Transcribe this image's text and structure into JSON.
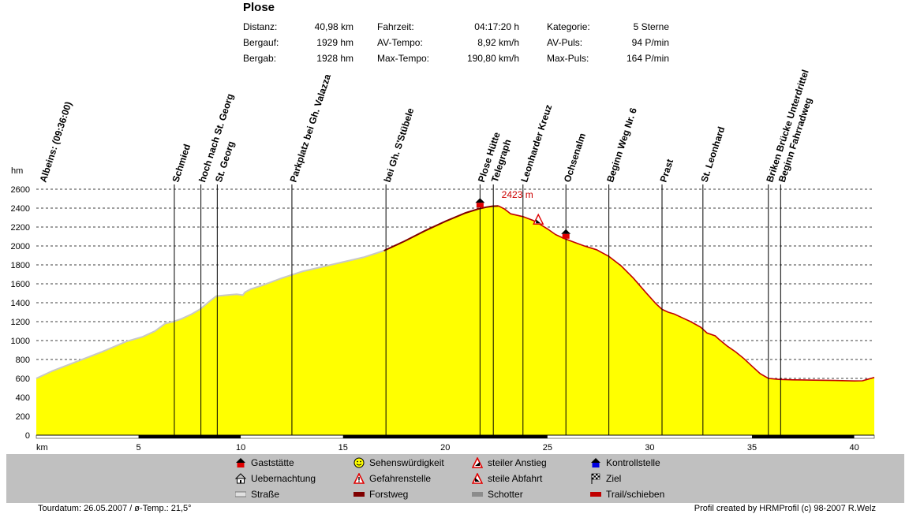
{
  "title": "Plose",
  "stats": [
    {
      "label": "Distanz:",
      "value": "40,98 km"
    },
    {
      "label": "Bergauf:",
      "value": "1929 hm"
    },
    {
      "label": "Bergab:",
      "value": "1928 hm"
    },
    {
      "label": "Fahrzeit:",
      "value": "04:17:20 h"
    },
    {
      "label": "AV-Tempo:",
      "value": "8,92 km/h"
    },
    {
      "label": "Max-Tempo:",
      "value": "190,80 km/h"
    },
    {
      "label": "Kategorie:",
      "value": "5 Sterne"
    },
    {
      "label": "AV-Puls:",
      "value": "94 P/min"
    },
    {
      "label": "Max-Puls:",
      "value": "164 P/min"
    }
  ],
  "chart_data": {
    "type": "area",
    "xlabel": "km",
    "ylabel": "hm",
    "xlim": [
      0,
      40.98
    ],
    "ylim": [
      0,
      2600
    ],
    "x_ticks": [
      5,
      10,
      15,
      20,
      25,
      30,
      35,
      40
    ],
    "y_ticks": [
      0,
      200,
      400,
      600,
      800,
      1000,
      1200,
      1400,
      1600,
      1800,
      2000,
      2200,
      2400,
      2600
    ],
    "grid": true,
    "fill_color": "#ffff00",
    "max_label": "2423 m",
    "max_point": {
      "x": 22.6,
      "y": 2423
    },
    "profile": {
      "x": [
        0,
        0.8,
        2.0,
        3.2,
        4.4,
        5.2,
        5.8,
        6.3,
        6.7,
        7.1,
        7.6,
        8.0,
        8.5,
        8.8,
        9.3,
        9.8,
        10.1,
        10.2,
        10.5,
        11.0,
        12.0,
        13.0,
        14.0,
        15.0,
        16.0,
        17.0,
        18.0,
        19.0,
        20.0,
        21.0,
        21.6,
        22.0,
        22.3,
        22.6,
        22.9,
        23.2,
        23.8,
        24.3,
        24.7,
        25.0,
        25.4,
        25.8,
        26.3,
        26.8,
        27.4,
        28.0,
        28.6,
        29.2,
        29.8,
        30.3,
        30.6,
        30.9,
        31.2,
        31.6,
        32.0,
        32.5,
        32.8,
        33.2,
        33.4,
        33.8,
        34.2,
        34.6,
        35.0,
        35.4,
        35.8,
        36.3,
        37.0,
        38.0,
        39.0,
        40.0,
        40.4,
        40.98
      ],
      "y": [
        600,
        680,
        780,
        880,
        990,
        1040,
        1100,
        1180,
        1200,
        1230,
        1280,
        1330,
        1420,
        1470,
        1480,
        1490,
        1480,
        1510,
        1545,
        1580,
        1660,
        1730,
        1780,
        1830,
        1880,
        1950,
        2050,
        2160,
        2260,
        2350,
        2390,
        2410,
        2420,
        2423,
        2390,
        2340,
        2310,
        2270,
        2220,
        2180,
        2120,
        2080,
        2040,
        2000,
        1960,
        1890,
        1790,
        1660,
        1510,
        1390,
        1330,
        1300,
        1280,
        1240,
        1200,
        1140,
        1080,
        1050,
        1010,
        940,
        880,
        810,
        730,
        650,
        600,
        590,
        585,
        582,
        578,
        573,
        575,
        610
      ]
    },
    "surface_segments": [
      {
        "from": 0,
        "to": 5.0,
        "type": "Straße"
      },
      {
        "from": 5.0,
        "to": 10.0,
        "type": "Forstweg"
      },
      {
        "from": 10.0,
        "to": 15.0,
        "type": "Straße"
      },
      {
        "from": 15.0,
        "to": 25.0,
        "type": "Forstweg"
      },
      {
        "from": 25.0,
        "to": 35.0,
        "type": "Straße"
      },
      {
        "from": 35.0,
        "to": 40.0,
        "type": "Forstweg"
      },
      {
        "from": 40.0,
        "to": 40.98,
        "type": "Straße"
      }
    ],
    "waypoints": [
      {
        "x": 0.0,
        "label": "Albeins: (09:36:00)",
        "line": false
      },
      {
        "x": 6.75,
        "label": "Schmied",
        "line": true
      },
      {
        "x": 8.05,
        "label": "hoch nach St. Georg",
        "line": true
      },
      {
        "x": 8.85,
        "label": "St. Georg",
        "line": true
      },
      {
        "x": 12.5,
        "label": "Parkplatz bei Gh. Valazza",
        "line": true
      },
      {
        "x": 17.1,
        "label": "bei Gh. S'Stübele",
        "line": true
      },
      {
        "x": 21.7,
        "label": "Plose Hütte",
        "line": true
      },
      {
        "x": 22.35,
        "label": "Telegraph",
        "line": true
      },
      {
        "x": 23.8,
        "label": "Leonharder Kreuz",
        "line": true
      },
      {
        "x": 25.9,
        "label": "Ochsenalm",
        "line": true
      },
      {
        "x": 28.0,
        "label": "Beginn Weg Nr. 6",
        "line": true
      },
      {
        "x": 30.6,
        "label": "Prast",
        "line": true
      },
      {
        "x": 32.6,
        "label": "St. Leonhard",
        "line": true
      },
      {
        "x": 35.8,
        "label": "Briken Brücke Unterdrittel",
        "line": true
      },
      {
        "x": 36.4,
        "label": "Beginn Fahrradweg",
        "line": true
      }
    ],
    "markers": [
      {
        "x": 21.7,
        "y": 2390,
        "type": "Gaststätte"
      },
      {
        "x": 24.55,
        "y": 2215,
        "type": "steile Abfahrt"
      },
      {
        "x": 25.9,
        "y": 2060,
        "type": "Kontrollstelle"
      }
    ]
  },
  "legend": [
    {
      "label": "Gaststätte",
      "icon": "house-red-icon"
    },
    {
      "label": "Uebernachtung",
      "icon": "lodge-icon"
    },
    {
      "label": "Straße",
      "icon": "road-swatch-icon"
    },
    {
      "label": "Sehenswürdigkeit",
      "icon": "smiley-icon"
    },
    {
      "label": "Gefahrenstelle",
      "icon": "warning-icon"
    },
    {
      "label": "Forstweg",
      "icon": "forest-road-swatch-icon"
    },
    {
      "label": "steiler Anstieg",
      "icon": "steep-climb-icon"
    },
    {
      "label": "steile Abfahrt",
      "icon": "steep-descent-icon"
    },
    {
      "label": "Schotter",
      "icon": "gravel-swatch-icon"
    },
    {
      "label": "Kontrollstelle",
      "icon": "checkpoint-icon"
    },
    {
      "label": "Ziel",
      "icon": "finish-flag-icon"
    },
    {
      "label": "Trail/schieben",
      "icon": "trail-swatch-icon"
    }
  ],
  "colors": {
    "straße": "#c8c8c8",
    "forstweg": "#800000",
    "schotter": "#8c8c8c",
    "trail": "#c00000",
    "profile_line": "#c00000",
    "max_label": "#cc0000"
  },
  "footer": {
    "left": "Tourdatum: 26.05.2007  /  ø-Temp.: 21,5°",
    "right": "Profil created by HRMProfil (c) 98-2007 R.Welz"
  }
}
